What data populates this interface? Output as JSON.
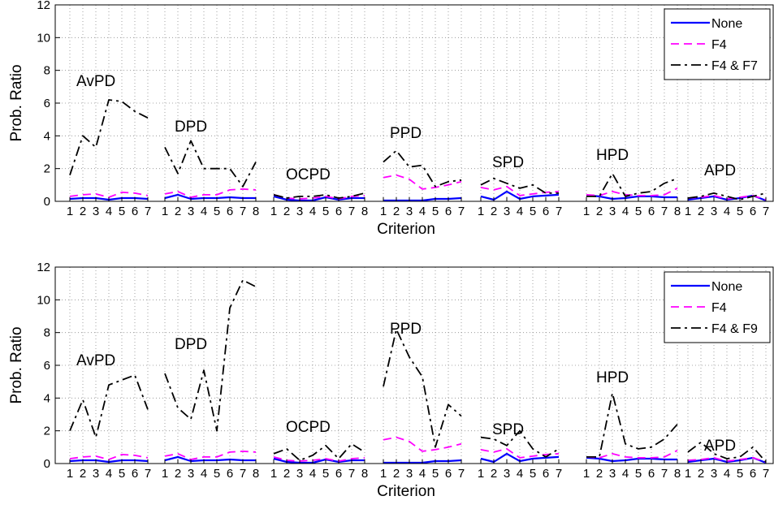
{
  "chart_data": [
    {
      "type": "line",
      "ylabel": "Prob. Ratio",
      "xlabel": "Criterion",
      "ylim": [
        0,
        12
      ],
      "yticks": [
        0,
        2,
        4,
        6,
        8,
        10,
        12
      ],
      "grid": true,
      "legend_position": "top-right",
      "groups": [
        {
          "name": "AvPD",
          "criteria": [
            "1",
            "2",
            "3",
            "4",
            "5",
            "6",
            "7"
          ]
        },
        {
          "name": "DPD",
          "criteria": [
            "1",
            "2",
            "3",
            "4",
            "5",
            "6",
            "7",
            "8"
          ]
        },
        {
          "name": "OCPD",
          "criteria": [
            "1",
            "2",
            "3",
            "4",
            "5",
            "6",
            "7",
            "8"
          ]
        },
        {
          "name": "PPD",
          "criteria": [
            "1",
            "2",
            "3",
            "4",
            "5",
            "6",
            "7"
          ]
        },
        {
          "name": "SPD",
          "criteria": [
            "1",
            "2",
            "3",
            "4",
            "5",
            "6",
            "7"
          ]
        },
        {
          "name": "HPD",
          "criteria": [
            "1",
            "2",
            "3",
            "4",
            "5",
            "6",
            "7",
            "8"
          ]
        },
        {
          "name": "APD",
          "criteria": [
            "1",
            "2",
            "3",
            "4",
            "5",
            "6",
            "7"
          ]
        }
      ],
      "series": [
        {
          "name": "None",
          "color": "#0000ff",
          "style": "solid",
          "values": [
            [
              0.15,
              0.2,
              0.2,
              0.1,
              0.2,
              0.2,
              0.15
            ],
            [
              0.2,
              0.4,
              0.15,
              0.2,
              0.2,
              0.25,
              0.2,
              0.2
            ],
            [
              0.3,
              0.1,
              0.05,
              0.05,
              0.25,
              0.1,
              0.2,
              0.2
            ],
            [
              0.05,
              0.05,
              0.05,
              0.05,
              0.15,
              0.15,
              0.2
            ],
            [
              0.3,
              0.1,
              0.6,
              0.15,
              0.3,
              0.35,
              0.4
            ],
            [
              0.35,
              0.3,
              0.15,
              0.2,
              0.3,
              0.3,
              0.25,
              0.25
            ],
            [
              0.1,
              0.2,
              0.3,
              0.1,
              0.2,
              0.35,
              0.05
            ]
          ]
        },
        {
          "name": "F4",
          "color": "#ff00ff",
          "style": "dashed",
          "values": [
            [
              0.3,
              0.4,
              0.45,
              0.25,
              0.55,
              0.5,
              0.35
            ],
            [
              0.45,
              0.6,
              0.25,
              0.4,
              0.4,
              0.7,
              0.75,
              0.7
            ],
            [
              0.4,
              0.2,
              0.15,
              0.2,
              0.3,
              0.15,
              0.3,
              0.35
            ],
            [
              1.45,
              1.6,
              1.35,
              0.75,
              0.85,
              1.0,
              1.2
            ],
            [
              0.85,
              0.7,
              0.9,
              0.35,
              0.45,
              0.55,
              0.6
            ],
            [
              0.4,
              0.35,
              0.6,
              0.4,
              0.35,
              0.35,
              0.4,
              0.8
            ],
            [
              0.2,
              0.25,
              0.35,
              0.15,
              0.25,
              0.35,
              0.1
            ]
          ]
        },
        {
          "name": "F4 & F7",
          "color": "#000000",
          "style": "dashdot",
          "values": [
            [
              1.6,
              4.0,
              3.3,
              6.2,
              6.1,
              5.5,
              5.1
            ],
            [
              3.3,
              1.7,
              3.7,
              2.0,
              2.0,
              2.0,
              0.9,
              2.4
            ],
            [
              0.4,
              0.2,
              0.3,
              0.3,
              0.4,
              0.2,
              0.3,
              0.5
            ],
            [
              2.4,
              3.1,
              2.1,
              2.2,
              0.9,
              1.2,
              1.3
            ],
            [
              1.0,
              1.4,
              1.1,
              0.8,
              1.0,
              0.5,
              0.5
            ],
            [
              0.3,
              0.3,
              1.7,
              0.3,
              0.5,
              0.6,
              1.1,
              1.4
            ],
            [
              0.2,
              0.3,
              0.5,
              0.3,
              0.1,
              0.3,
              0.5
            ]
          ]
        }
      ]
    },
    {
      "type": "line",
      "ylabel": "Prob. Ratio",
      "xlabel": "Criterion",
      "ylim": [
        0,
        12
      ],
      "yticks": [
        0,
        2,
        4,
        6,
        8,
        10,
        12
      ],
      "grid": true,
      "legend_position": "top-right",
      "groups": [
        {
          "name": "AvPD",
          "criteria": [
            "1",
            "2",
            "3",
            "4",
            "5",
            "6",
            "7"
          ]
        },
        {
          "name": "DPD",
          "criteria": [
            "1",
            "2",
            "3",
            "4",
            "5",
            "6",
            "7",
            "8"
          ]
        },
        {
          "name": "OCPD",
          "criteria": [
            "1",
            "2",
            "3",
            "4",
            "5",
            "6",
            "7",
            "8"
          ]
        },
        {
          "name": "PPD",
          "criteria": [
            "1",
            "2",
            "3",
            "4",
            "5",
            "6",
            "7"
          ]
        },
        {
          "name": "SPD",
          "criteria": [
            "1",
            "2",
            "3",
            "4",
            "5",
            "6",
            "7"
          ]
        },
        {
          "name": "HPD",
          "criteria": [
            "1",
            "2",
            "3",
            "4",
            "5",
            "6",
            "7",
            "8"
          ]
        },
        {
          "name": "APD",
          "criteria": [
            "1",
            "2",
            "3",
            "4",
            "5",
            "6",
            "7"
          ]
        }
      ],
      "series": [
        {
          "name": "None",
          "color": "#0000ff",
          "style": "solid",
          "values": [
            [
              0.15,
              0.2,
              0.2,
              0.1,
              0.2,
              0.2,
              0.15
            ],
            [
              0.2,
              0.4,
              0.15,
              0.2,
              0.2,
              0.25,
              0.2,
              0.2
            ],
            [
              0.3,
              0.1,
              0.05,
              0.05,
              0.25,
              0.1,
              0.2,
              0.2
            ],
            [
              0.05,
              0.05,
              0.05,
              0.05,
              0.15,
              0.15,
              0.2
            ],
            [
              0.3,
              0.1,
              0.6,
              0.15,
              0.3,
              0.35,
              0.4
            ],
            [
              0.35,
              0.3,
              0.15,
              0.2,
              0.3,
              0.3,
              0.25,
              0.25
            ],
            [
              0.1,
              0.2,
              0.3,
              0.1,
              0.2,
              0.35,
              0.05
            ]
          ]
        },
        {
          "name": "F4",
          "color": "#ff00ff",
          "style": "dashed",
          "values": [
            [
              0.3,
              0.4,
              0.45,
              0.25,
              0.55,
              0.5,
              0.35
            ],
            [
              0.45,
              0.6,
              0.25,
              0.4,
              0.4,
              0.7,
              0.75,
              0.7
            ],
            [
              0.4,
              0.2,
              0.15,
              0.2,
              0.3,
              0.15,
              0.3,
              0.35
            ],
            [
              1.45,
              1.6,
              1.35,
              0.75,
              0.85,
              1.0,
              1.2
            ],
            [
              0.85,
              0.7,
              0.9,
              0.35,
              0.45,
              0.55,
              0.6
            ],
            [
              0.4,
              0.35,
              0.6,
              0.4,
              0.35,
              0.35,
              0.4,
              0.8
            ],
            [
              0.2,
              0.25,
              0.35,
              0.15,
              0.25,
              0.35,
              0.1
            ]
          ]
        },
        {
          "name": "F4 & F9",
          "color": "#000000",
          "style": "dashdot",
          "values": [
            [
              2.0,
              3.9,
              1.6,
              4.8,
              5.1,
              5.4,
              3.3
            ],
            [
              5.5,
              3.4,
              2.7,
              5.7,
              2.0,
              9.5,
              11.2,
              10.8
            ],
            [
              0.6,
              0.9,
              0.2,
              0.5,
              1.1,
              0.3,
              1.2,
              0.7
            ],
            [
              4.7,
              8.2,
              6.5,
              5.3,
              1.0,
              3.6,
              2.9
            ],
            [
              1.6,
              1.5,
              1.1,
              2.0,
              0.9,
              0.4,
              0.9
            ],
            [
              0.4,
              0.4,
              4.3,
              1.2,
              0.9,
              1.0,
              1.5,
              2.4
            ],
            [
              0.7,
              1.3,
              0.6,
              0.3,
              0.4,
              1.0,
              0.1
            ]
          ]
        }
      ]
    }
  ]
}
